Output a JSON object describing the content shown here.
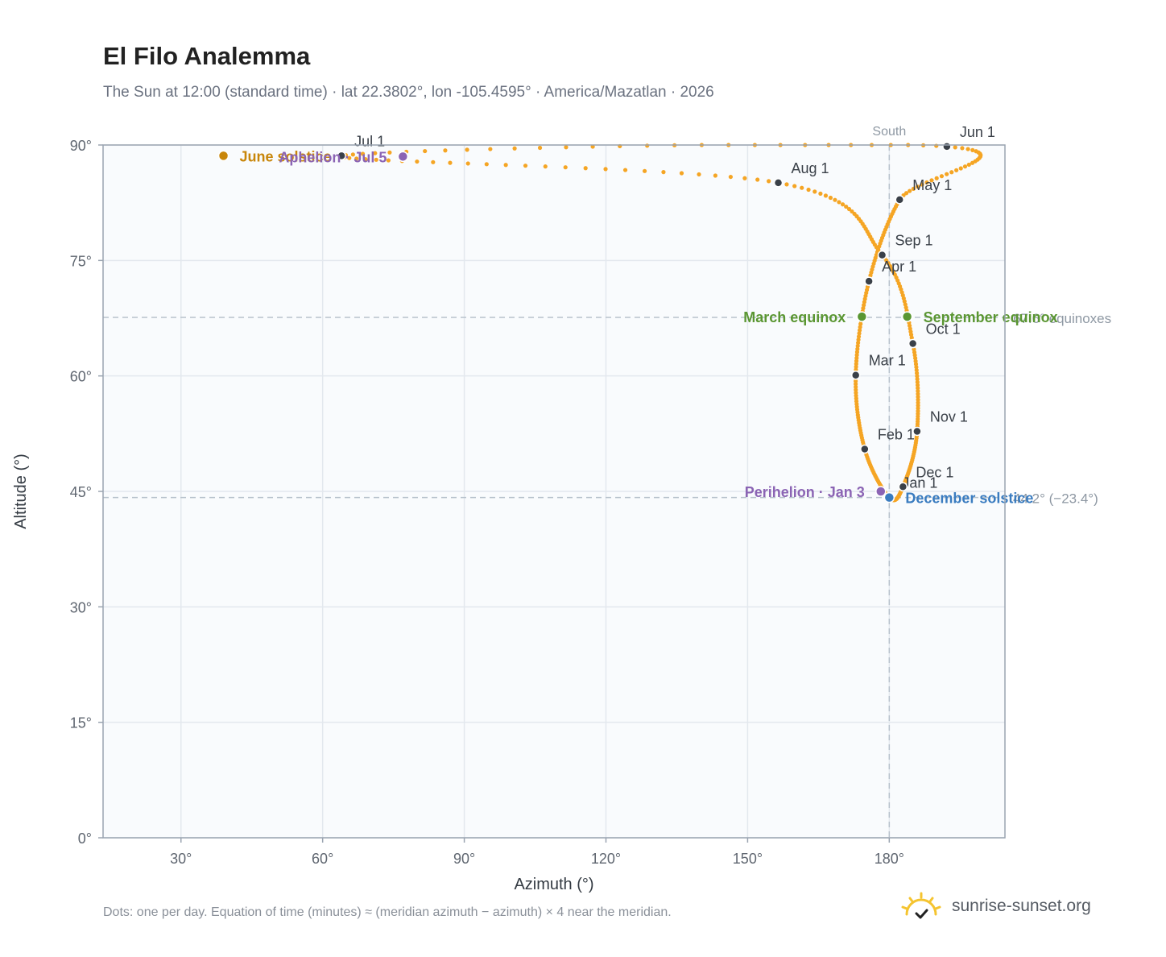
{
  "chart_data": {
    "type": "scatter",
    "title": "El Filo Analemma",
    "subtitle": "The Sun at 12:00 (standard time) · lat 22.3802°, lon -105.4595° · America/Mazatlan · 2026",
    "xlabel": "Azimuth (°)",
    "ylabel": "Altitude (°)",
    "xlim": [
      13.5,
      204.5
    ],
    "ylim": [
      0,
      90
    ],
    "x_ticks": [
      30,
      60,
      90,
      120,
      150,
      180
    ],
    "x_tick_labels": [
      "30°",
      "60°",
      "90°",
      "120°",
      "150°",
      "180°"
    ],
    "y_ticks": [
      0,
      15,
      30,
      45,
      60,
      75,
      90
    ],
    "y_tick_labels": [
      "0°",
      "15°",
      "30°",
      "45°",
      "60°",
      "75°",
      "90°"
    ],
    "grid": true,
    "series_color": "#f5a524",
    "path_points": [
      {
        "label": "Jan 1",
        "x": 180.0,
        "y": 44.2
      },
      {
        "label": "Feb 1",
        "x": 174.8,
        "y": 50.5
      },
      {
        "label": "Mar 1",
        "x": 172.9,
        "y": 60.1
      },
      {
        "label": "Apr 1",
        "x": 175.7,
        "y": 72.3
      },
      {
        "label": "May 1",
        "x": 182.2,
        "y": 82.9
      },
      {
        "label": "Jun 1",
        "x": 192.2,
        "y": 89.8
      },
      {
        "label": "Jul 1",
        "x": 64.0,
        "y": 88.6
      },
      {
        "label": "Aug 1",
        "x": 156.5,
        "y": 85.1
      },
      {
        "label": "Sep 1",
        "x": 178.5,
        "y": 75.7
      },
      {
        "label": "Oct 1",
        "x": 185.0,
        "y": 64.2
      },
      {
        "label": "Nov 1",
        "x": 185.9,
        "y": 52.8
      },
      {
        "label": "Dec 1",
        "x": 182.9,
        "y": 45.6
      }
    ],
    "events": [
      {
        "label": "March equinox",
        "x": 174.2,
        "y": 67.7,
        "color": "#5a9632",
        "side": "left"
      },
      {
        "label": "September equinox",
        "x": 183.8,
        "y": 67.7,
        "color": "#5a9632",
        "side": "right"
      },
      {
        "label": "June solstice",
        "x": 39.0,
        "y": 88.6,
        "color": "#c8860a",
        "side": "right"
      },
      {
        "label": "December solstice",
        "x": 180.0,
        "y": 44.2,
        "color": "#3a7cc0",
        "side": "right"
      },
      {
        "label": "Perihelion · Jan 3",
        "x": 178.2,
        "y": 45.0,
        "color": "#8b64b4",
        "side": "left"
      },
      {
        "label": "Aphelion · Jul 5",
        "x": 77.0,
        "y": 88.5,
        "color": "#8b64b4",
        "side": "left"
      }
    ],
    "reference_lines": [
      {
        "axis": "x",
        "value": 180,
        "label": "South"
      },
      {
        "axis": "y",
        "value": 67.6,
        "label": "67.6° equinoxes"
      },
      {
        "axis": "y",
        "value": 44.2,
        "label": "44.2° (−23.4°)"
      }
    ]
  },
  "footnote": "Dots: one per day. Equation of time (minutes) ≈ (meridian azimuth − azimuth) × 4 near the meridian.",
  "brand": {
    "name": "sunrise-sunset.org",
    "icon": "sun-check-logo",
    "icon_color": "#f5c430"
  }
}
